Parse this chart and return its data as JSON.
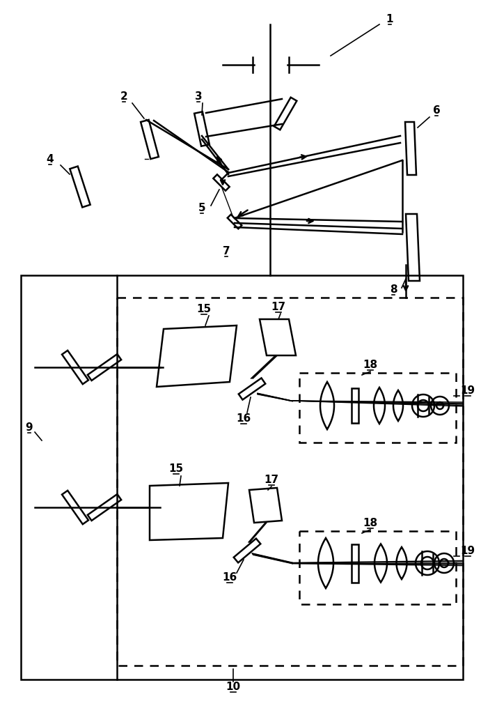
{
  "fig_width": 6.91,
  "fig_height": 10.13,
  "dpi": 100,
  "lw": 1.8,
  "lw_thin": 1.2,
  "lw_beam": 1.0,
  "fs": 11
}
